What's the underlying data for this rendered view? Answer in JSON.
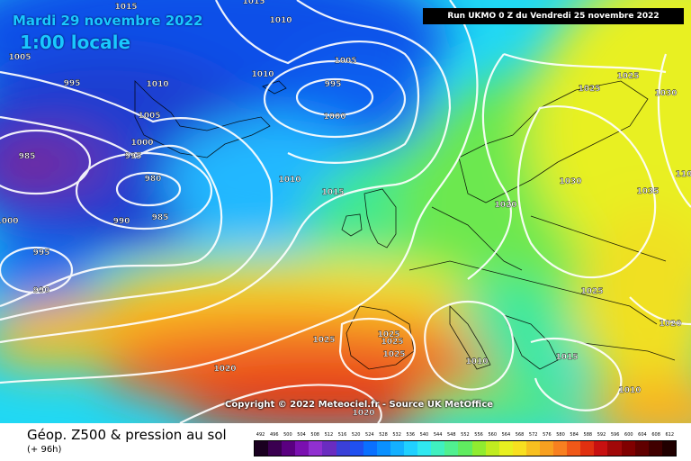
{
  "header": {
    "date": "Mardi 29 novembre 2022",
    "time": "1:00 locale",
    "run": "Run UKMO 0 Z du Vendredi 25 novembre 2022"
  },
  "map": {
    "copyright": "Copyright © 2022 Meteociel.fr - Source UK MetOffice",
    "variable_title": "Géop. Z500 & pression au sol",
    "lead_time": "(+ 96h)",
    "pressure_labels": [
      "1015",
      "1010",
      "1015",
      "1005",
      "995",
      "1010",
      "1010",
      "1005",
      "995",
      "1000",
      "1005",
      "1000",
      "985",
      "995",
      "980",
      "990",
      "985",
      "1000",
      "1010",
      "1015",
      "995",
      "990",
      "1025",
      "1025",
      "1030",
      "1020",
      "1030",
      "1035",
      "110",
      "1025",
      "1020",
      "1025",
      "1025",
      "1025",
      "1025",
      "1010",
      "1015",
      "1020",
      "1010",
      "1020"
    ]
  },
  "legend": {
    "z500_dam": [
      492,
      496,
      500,
      504,
      508,
      512,
      516,
      520,
      524,
      528,
      532,
      536,
      540,
      544,
      548,
      552,
      556,
      560,
      564,
      568,
      572,
      576,
      580,
      584,
      588,
      592,
      596,
      600,
      604,
      608,
      612
    ],
    "colors": [
      "#1a0020",
      "#3a0050",
      "#5a0080",
      "#7a10b0",
      "#9030d0",
      "#6a2cc0",
      "#3a40d8",
      "#2050f0",
      "#0a70ff",
      "#0a90ff",
      "#14b0ff",
      "#20d0ff",
      "#30e8f0",
      "#40f0c0",
      "#50f090",
      "#60ec60",
      "#90ec30",
      "#c0ec20",
      "#e8f020",
      "#f8e020",
      "#f8c020",
      "#f8a020",
      "#f88020",
      "#f05818",
      "#e03010",
      "#c81010",
      "#a00808",
      "#800000",
      "#600000",
      "#400000",
      "#200000"
    ]
  }
}
